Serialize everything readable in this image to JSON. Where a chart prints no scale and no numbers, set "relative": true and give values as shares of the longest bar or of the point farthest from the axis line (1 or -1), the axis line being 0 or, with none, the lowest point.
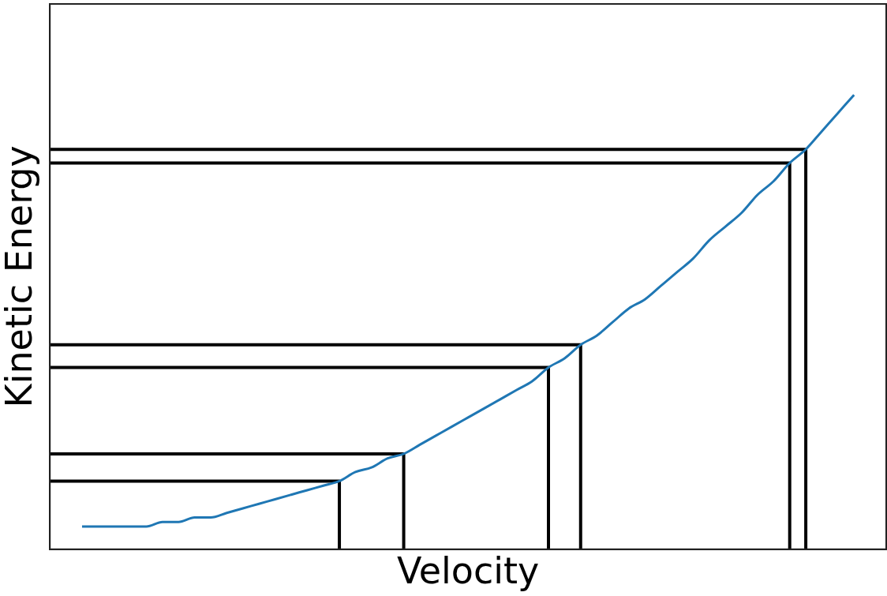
{
  "chart_data": {
    "type": "line",
    "xlabel": "Velocity",
    "ylabel": "Kinetic Energy",
    "relative": true,
    "tick_labels": false,
    "grid": false,
    "legend": false,
    "marker": "none",
    "categories": [
      null,
      null,
      null,
      null,
      null,
      null,
      null,
      null,
      null,
      null,
      null,
      null,
      null,
      null,
      null,
      null,
      null,
      null,
      null,
      null,
      null,
      null,
      null,
      null,
      null,
      null,
      null,
      null,
      null,
      null,
      null,
      null,
      null,
      null,
      null,
      null,
      null,
      null,
      null,
      null,
      null,
      null,
      null,
      null,
      null,
      null,
      null,
      null,
      null,
      null,
      null,
      null,
      null
    ],
    "series": [
      {
        "type": "line",
        "color": "#1f77b4",
        "values": [
          null,
          null,
          0.05,
          0.05,
          0.05,
          0.05,
          0.05,
          0.06,
          0.06,
          0.07,
          0.07,
          0.08,
          0.09,
          0.1,
          0.11,
          0.12,
          0.13,
          0.14,
          0.15,
          0.17,
          0.18,
          0.2,
          0.21,
          0.23,
          0.25,
          0.27,
          0.29,
          0.31,
          0.33,
          0.35,
          0.37,
          0.4,
          0.42,
          0.45,
          0.47,
          0.5,
          0.53,
          0.55,
          0.58,
          0.61,
          0.64,
          0.68,
          0.71,
          0.74,
          0.78,
          0.81,
          0.85,
          0.88,
          0.92,
          0.96,
          1,
          null,
          null
        ]
      },
      {
        "type": "step",
        "color": "#000000",
        "values": [
          0.15,
          null,
          null,
          null,
          null,
          null,
          null,
          null,
          null,
          null,
          null,
          null,
          null,
          null,
          null,
          null,
          null,
          null,
          0,
          null,
          null,
          null,
          null,
          null,
          null,
          null,
          null,
          null,
          null,
          null,
          null,
          null,
          null,
          null,
          null,
          null,
          null,
          null,
          null,
          null,
          null,
          null,
          null,
          null,
          null,
          null,
          null,
          null,
          null,
          null,
          null,
          null,
          null
        ]
      },
      {
        "type": "step",
        "color": "#000000",
        "values": [
          0.21,
          null,
          null,
          null,
          null,
          null,
          null,
          null,
          null,
          null,
          null,
          null,
          null,
          null,
          null,
          null,
          null,
          null,
          null,
          null,
          null,
          null,
          0,
          null,
          null,
          null,
          null,
          null,
          null,
          null,
          null,
          null,
          null,
          null,
          null,
          null,
          null,
          null,
          null,
          null,
          null,
          null,
          null,
          null,
          null,
          null,
          null,
          null,
          null,
          null,
          null,
          null,
          null
        ]
      },
      {
        "type": "step",
        "color": "#000000",
        "values": [
          0.4,
          null,
          null,
          null,
          null,
          null,
          null,
          null,
          null,
          null,
          null,
          null,
          null,
          null,
          null,
          null,
          null,
          null,
          null,
          null,
          null,
          null,
          null,
          null,
          null,
          null,
          null,
          null,
          null,
          null,
          null,
          0,
          null,
          null,
          null,
          null,
          null,
          null,
          null,
          null,
          null,
          null,
          null,
          null,
          null,
          null,
          null,
          null,
          null,
          null,
          null,
          null,
          null
        ]
      },
      {
        "type": "step",
        "color": "#000000",
        "values": [
          0.45,
          null,
          null,
          null,
          null,
          null,
          null,
          null,
          null,
          null,
          null,
          null,
          null,
          null,
          null,
          null,
          null,
          null,
          null,
          null,
          null,
          null,
          null,
          null,
          null,
          null,
          null,
          null,
          null,
          null,
          null,
          null,
          null,
          0,
          null,
          null,
          null,
          null,
          null,
          null,
          null,
          null,
          null,
          null,
          null,
          null,
          null,
          null,
          null,
          null,
          null,
          null,
          null
        ]
      },
      {
        "type": "step",
        "color": "#000000",
        "values": [
          0.85,
          null,
          null,
          null,
          null,
          null,
          null,
          null,
          null,
          null,
          null,
          null,
          null,
          null,
          null,
          null,
          null,
          null,
          null,
          null,
          null,
          null,
          null,
          null,
          null,
          null,
          null,
          null,
          null,
          null,
          null,
          null,
          null,
          null,
          null,
          null,
          null,
          null,
          null,
          null,
          null,
          null,
          null,
          null,
          null,
          null,
          0,
          null,
          null,
          null,
          null,
          null,
          null
        ]
      },
      {
        "type": "step",
        "color": "#000000",
        "values": [
          0.88,
          null,
          null,
          null,
          null,
          null,
          null,
          null,
          null,
          null,
          null,
          null,
          null,
          null,
          null,
          null,
          null,
          null,
          null,
          null,
          null,
          null,
          null,
          null,
          null,
          null,
          null,
          null,
          null,
          null,
          null,
          null,
          null,
          null,
          null,
          null,
          null,
          null,
          null,
          null,
          null,
          null,
          null,
          null,
          null,
          null,
          null,
          0,
          null,
          null,
          null,
          null,
          null
        ]
      }
    ]
  }
}
